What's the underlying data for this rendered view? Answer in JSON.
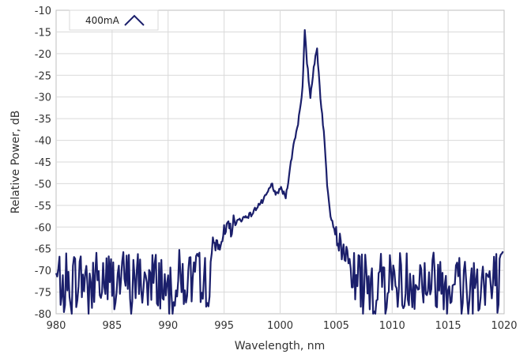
{
  "chart_data": {
    "type": "line",
    "xlabel": "Wavelength, nm",
    "ylabel": "Relative Power, dB",
    "xlim": [
      980,
      1020
    ],
    "ylim": [
      -80,
      -10
    ],
    "x_ticks": [
      980,
      985,
      990,
      995,
      1000,
      1005,
      1010,
      1015,
      1020
    ],
    "y_ticks": [
      -10,
      -15,
      -20,
      -25,
      -30,
      -35,
      -40,
      -45,
      -50,
      -55,
      -60,
      -65,
      -70,
      -75,
      -80
    ],
    "grid": true,
    "legend_position": "top-left",
    "series": [
      {
        "name": "400mA",
        "color": "#1b1f6b",
        "noise_floor": {
          "x_range": [
            980,
            994
          ],
          "mean": -72,
          "amplitude": 7
        },
        "x": [
          994,
          995,
          996,
          997,
          997.5,
          998,
          998.5,
          999,
          999.3,
          999.6,
          1000,
          1000.5,
          1000.8,
          1001.2,
          1001.6,
          1002,
          1002.2,
          1002.4,
          1002.7,
          1003,
          1003.3,
          1003.6,
          1003.9,
          1004.2,
          1004.5,
          1005,
          1005.5,
          1006
        ],
        "y": [
          -64,
          -62,
          -59,
          -57.5,
          -57,
          -55,
          -54,
          -51.5,
          -50,
          -53,
          -51,
          -53,
          -48,
          -41,
          -36,
          -28,
          -15,
          -22,
          -30,
          -23,
          -19,
          -30,
          -38,
          -50,
          -57,
          -62,
          -65,
          -67
        ],
        "noise_floor_right": {
          "x_range": [
            1006,
            1020
          ],
          "mean": -72,
          "amplitude": 7
        }
      }
    ]
  },
  "legend": {
    "label": "400mA",
    "color": "#1b1f6b"
  }
}
